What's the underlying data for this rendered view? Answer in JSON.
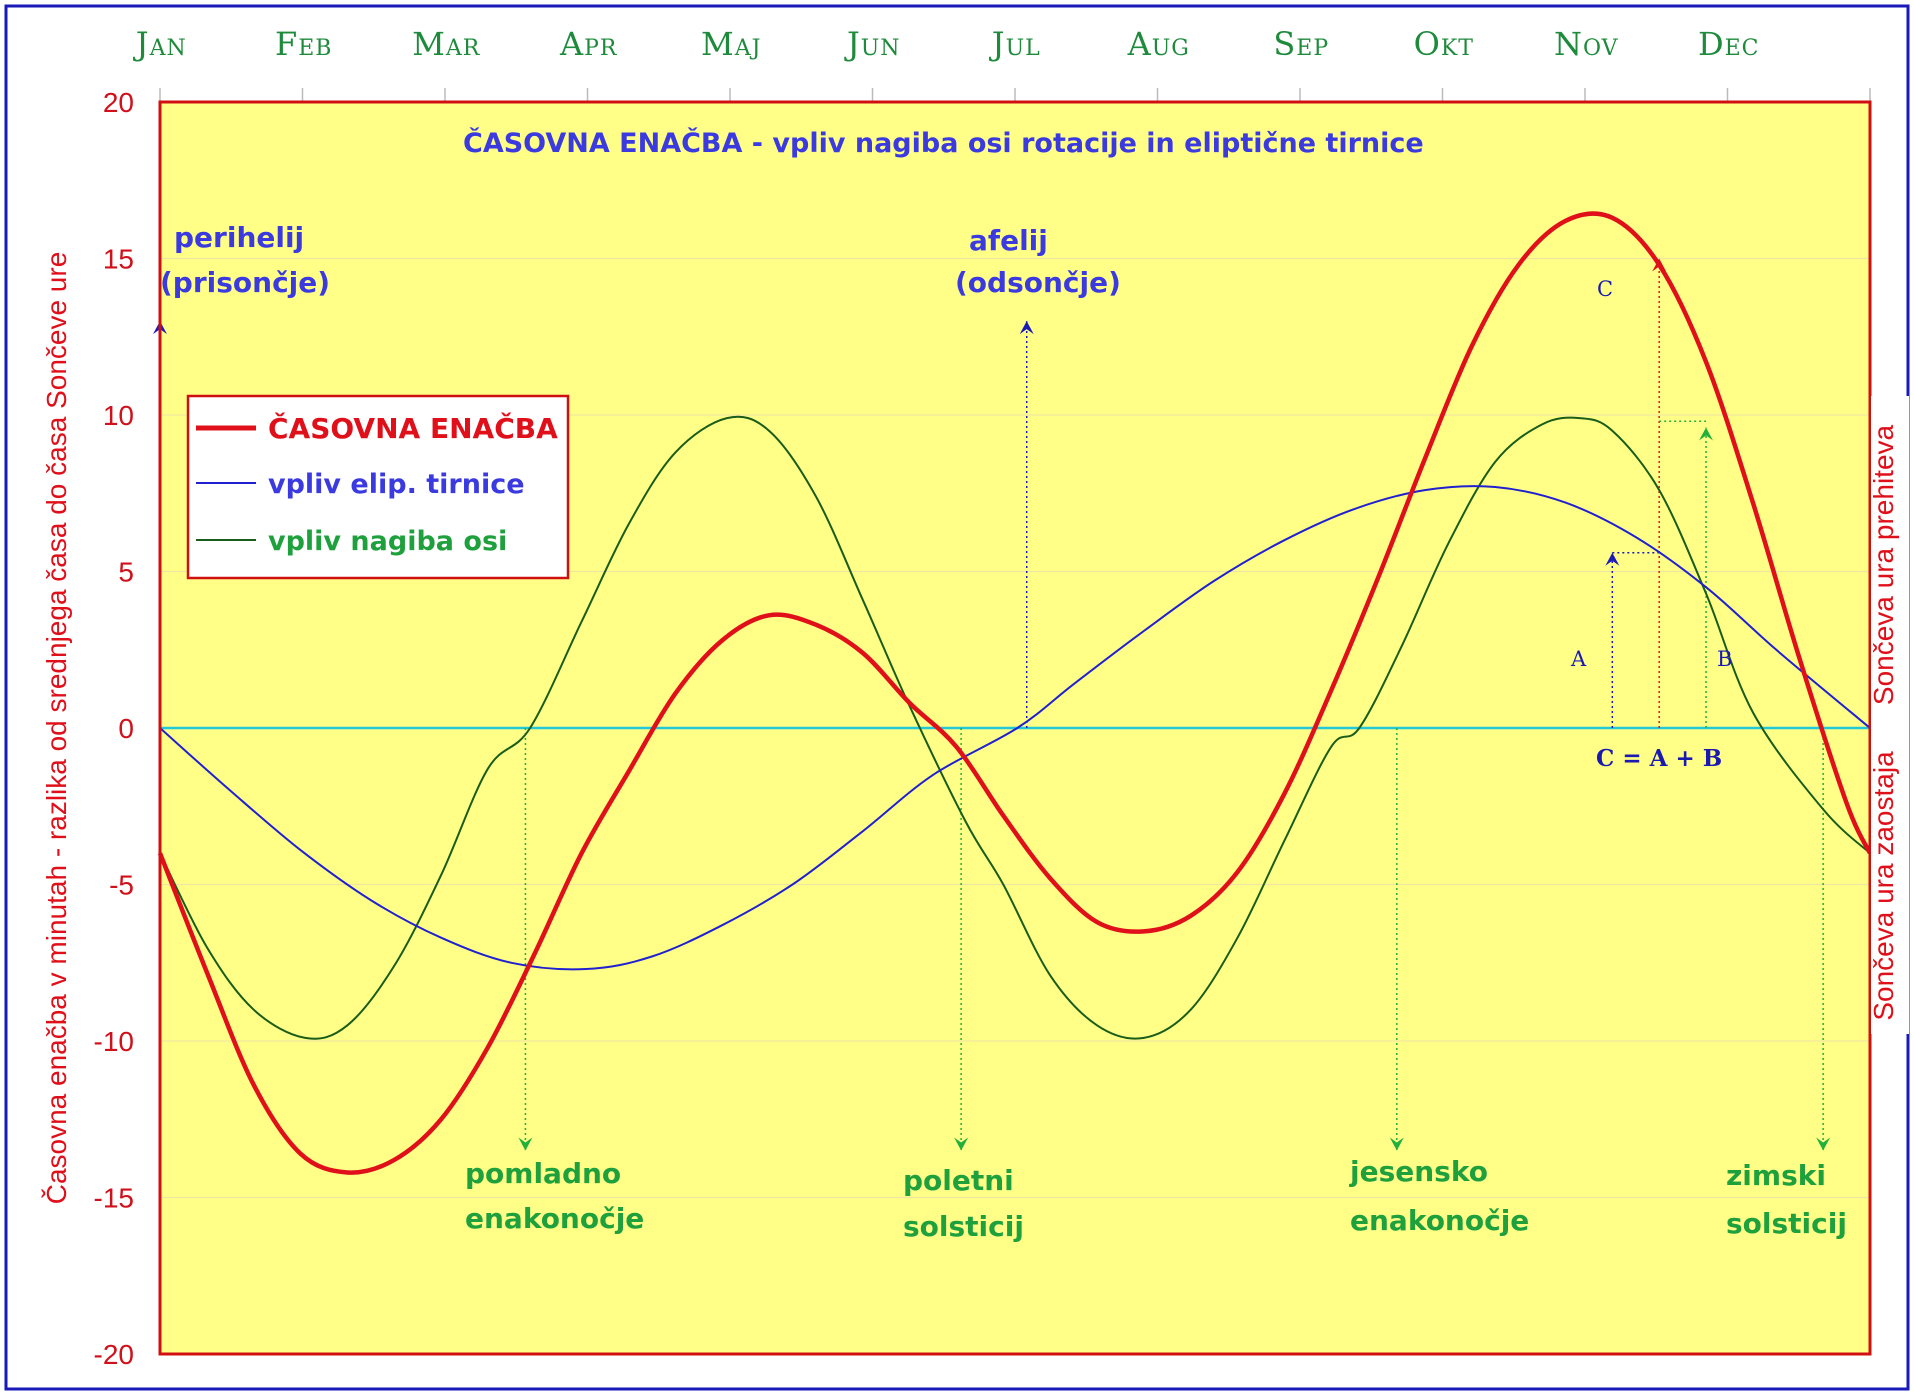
{
  "chart_data": {
    "type": "line",
    "title": "ČASOVNA ENAČBA - vpliv nagiba osi rotacije in eliptične tirnice",
    "ylabel_left": "Časovna enačba v minutah - razlika od srednjega časa do časa Sončeve ure",
    "ylabel_right_top": "Sončeva ura prehiteva",
    "ylabel_right_bottom": "Sončeva ura zaostaja",
    "months": [
      "Jan",
      "Feb",
      "Mar",
      "Apr",
      "Maj",
      "Jun",
      "Jul",
      "Aug",
      "Sep",
      "Okt",
      "Nov",
      "Dec"
    ],
    "ylim": [
      -20,
      20
    ],
    "yticks": [
      20,
      15,
      10,
      5,
      0,
      -5,
      -10,
      -15,
      -20
    ],
    "x_unit": "day of year",
    "xlim": [
      0,
      365
    ],
    "series": [
      {
        "name": "ČASOVNA ENAČBA",
        "color": "#e0101a",
        "x": [
          0,
          10,
          20,
          30,
          40,
          50,
          60,
          70,
          80,
          90,
          100,
          110,
          120,
          130,
          140,
          150,
          160,
          170,
          180,
          190,
          200,
          210,
          220,
          230,
          240,
          250,
          260,
          270,
          280,
          290,
          300,
          310,
          320,
          330,
          340,
          350,
          360,
          365
        ],
        "y": [
          -4,
          -7.8,
          -11.4,
          -13.6,
          -14.2,
          -13.8,
          -12.5,
          -10.2,
          -7.2,
          -4.0,
          -1.4,
          1.1,
          2.8,
          3.6,
          3.3,
          2.4,
          0.8,
          -0.6,
          -2.8,
          -4.8,
          -6.2,
          -6.5,
          -6.0,
          -4.6,
          -2.1,
          1.2,
          4.8,
          8.6,
          12.2,
          14.8,
          16.2,
          16.3,
          14.8,
          11.7,
          7.2,
          2.2,
          -2.4,
          -4.0
        ]
      },
      {
        "name": "vpliv elip. tirnice",
        "color": "#2020d0",
        "x": [
          0,
          15,
          30,
          45,
          60,
          75,
          91,
          105,
          120,
          135,
          150,
          165,
          183,
          195,
          210,
          225,
          240,
          255,
          270,
          285,
          300,
          315,
          330,
          345,
          365
        ],
        "y": [
          0,
          -2.0,
          -3.9,
          -5.5,
          -6.7,
          -7.5,
          -7.7,
          -7.3,
          -6.3,
          -5.0,
          -3.3,
          -1.5,
          0,
          1.4,
          3.1,
          4.7,
          6.0,
          7.0,
          7.6,
          7.7,
          7.2,
          6.1,
          4.5,
          2.5,
          0
        ]
      },
      {
        "name": "vpliv nagiba osi",
        "color": "#1a5c1a",
        "x": [
          0,
          10,
          20,
          31,
          40,
          50,
          60,
          70,
          79,
          90,
          100,
          110,
          121,
          130,
          140,
          150,
          160,
          172,
          180,
          190,
          200,
          210,
          220,
          230,
          240,
          250,
          256,
          265,
          275,
          285,
          295,
          303,
          310,
          320,
          330,
          340,
          355,
          365
        ],
        "y": [
          -4.0,
          -7.0,
          -9.0,
          -9.9,
          -9.5,
          -7.6,
          -4.7,
          -1.3,
          0,
          3.4,
          6.5,
          8.8,
          9.9,
          9.5,
          7.4,
          4.1,
          0.7,
          -3.0,
          -5.0,
          -7.9,
          -9.5,
          -9.9,
          -9.0,
          -6.7,
          -3.6,
          -0.6,
          0,
          2.6,
          5.9,
          8.5,
          9.7,
          9.9,
          9.5,
          7.6,
          4.3,
          0.5,
          -2.6,
          -4.0
        ]
      }
    ],
    "annotations": {
      "perihelij": [
        "perihelij",
        "(prisončje)"
      ],
      "afelij": [
        "afelij",
        "(odsončje)"
      ],
      "pomladno": [
        "pomladno",
        "enakonočje"
      ],
      "poletni": [
        "poletni",
        "solsticij"
      ],
      "jesensko": [
        "jesensko",
        "enakonočje"
      ],
      "zimski": [
        "zimski",
        "solsticij"
      ],
      "A": "A",
      "B": "B",
      "C": "C",
      "formula": "C = A + B"
    },
    "legend": {
      "placement": "left",
      "items": [
        {
          "label": "ČASOVNA ENAČBA",
          "color": "#e0101a"
        },
        {
          "label": "vpliv elip. tirnice",
          "color": "#2020d0"
        },
        {
          "label": "vpliv nagiba osi",
          "color": "#1a5c1a"
        }
      ]
    },
    "grid": true,
    "colors": {
      "plot_background": "#ffff88",
      "zero_line": "#22c8d8",
      "frame": "#d01010",
      "border": "#1a1ab8",
      "gridline": "#f0e6a0"
    }
  }
}
